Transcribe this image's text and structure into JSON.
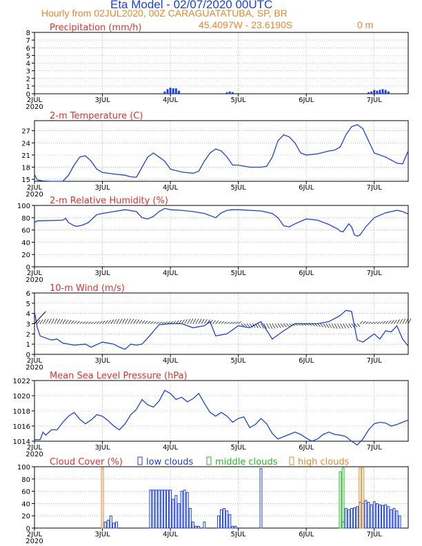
{
  "header": {
    "title": "Eta Model - 02/07/2020 00UTC",
    "subtitle": "Hourly from 02JUL2020, 00Z  CARAGUATATUBA, SP, BR",
    "coords": "45.4097W - 23.6190S",
    "elevation": "0  m"
  },
  "colors": {
    "line": "#1c40e0",
    "label": "#e03030",
    "orange": "#e8862a",
    "green": "#22bb22",
    "wind": "#000000"
  },
  "x_axis": {
    "range_hours": [
      0,
      132
    ],
    "tick_hours": [
      0,
      24,
      48,
      72,
      96,
      120
    ],
    "tick_labels": [
      "2JUL",
      "3JUL",
      "4JUL",
      "5JUL",
      "6JUL",
      "7JUL"
    ],
    "year_label": "2020"
  },
  "chart_data": [
    {
      "type": "bar",
      "title": "Precipitation (mm/h)",
      "ylim": [
        0,
        8
      ],
      "yticks": [
        0,
        1,
        2,
        3,
        4,
        5,
        6,
        7,
        8
      ],
      "series": [
        {
          "name": "precip",
          "x": [
            46,
            47,
            48,
            49,
            50,
            51,
            68,
            69,
            70,
            118,
            119,
            120,
            121,
            122,
            123,
            124,
            125
          ],
          "values": [
            0.3,
            0.6,
            0.8,
            0.7,
            0.7,
            0.4,
            0.2,
            0.3,
            0.2,
            0.2,
            0.3,
            0.5,
            0.4,
            0.5,
            0.6,
            0.5,
            0.3
          ]
        }
      ]
    },
    {
      "type": "line",
      "title": "2-m Temperature (C)",
      "ylim": [
        14.5,
        29.5
      ],
      "yticks": [
        15,
        18,
        21,
        24,
        27
      ],
      "series": [
        {
          "name": "temperature",
          "x": [
            0,
            1,
            3,
            6,
            10,
            12,
            14,
            16,
            18,
            20,
            22,
            24,
            28,
            32,
            34,
            36,
            38,
            40,
            42,
            44,
            46,
            48,
            52,
            56,
            58,
            60,
            62,
            64,
            66,
            68,
            70,
            72,
            76,
            80,
            82,
            84,
            86,
            88,
            90,
            92,
            94,
            96,
            100,
            104,
            106,
            108,
            110,
            112,
            114,
            116,
            118,
            120,
            124,
            128,
            130,
            132
          ],
          "values": [
            16.2,
            14.8,
            14.6,
            14.5,
            14.5,
            16,
            18.5,
            20.5,
            20.8,
            19.5,
            17.5,
            16.7,
            16.3,
            16,
            15.6,
            15.5,
            18,
            20.5,
            21.5,
            20.5,
            19.5,
            17.5,
            16.8,
            16.5,
            17,
            19.5,
            21.5,
            22.5,
            22,
            20.5,
            18.5,
            18.5,
            18,
            18,
            18.2,
            20.5,
            24.5,
            26,
            25.5,
            24,
            21.5,
            21,
            21.3,
            22,
            22.2,
            23,
            26,
            28,
            28.5,
            27.5,
            24.5,
            21.5,
            20.5,
            19,
            18.8,
            22
          ]
        }
      ]
    },
    {
      "type": "line",
      "title": "2-m Relative Humidity (%)",
      "ylim": [
        0,
        100
      ],
      "yticks": [
        0,
        20,
        40,
        60,
        80,
        100
      ],
      "series": [
        {
          "name": "humidity",
          "x": [
            0,
            1,
            2,
            10,
            11,
            12,
            14,
            15,
            17,
            19,
            22,
            24,
            28,
            32,
            36,
            38,
            40,
            42,
            44,
            46,
            48,
            52,
            56,
            60,
            64,
            66,
            68,
            70,
            72,
            80,
            84,
            86,
            88,
            90,
            92,
            96,
            100,
            104,
            106,
            107,
            108,
            109,
            111,
            112,
            113,
            114,
            115,
            117,
            120,
            124,
            128,
            130,
            132
          ],
          "values": [
            72,
            75,
            75,
            76,
            79,
            72,
            67,
            66,
            68,
            72,
            85,
            87,
            90,
            93,
            90,
            80,
            78,
            82,
            90,
            95,
            93,
            92,
            90,
            87,
            80,
            88,
            92,
            93,
            93,
            91,
            87,
            80,
            67,
            65,
            70,
            78,
            76,
            69,
            64,
            62,
            58,
            57,
            70,
            65,
            52,
            50,
            52,
            65,
            80,
            88,
            92,
            90,
            86
          ]
        }
      ]
    },
    {
      "type": "line",
      "title": "10-m Wind (m/s)",
      "ylim": [
        0,
        6
      ],
      "yticks": [
        0,
        1,
        2,
        3,
        4,
        5,
        6
      ],
      "series": [
        {
          "name": "wind_speed",
          "x": [
            0,
            1,
            2,
            4,
            6,
            8,
            10,
            14,
            18,
            20,
            24,
            28,
            30,
            32,
            34,
            36,
            38,
            40,
            44,
            48,
            52,
            56,
            60,
            62,
            64,
            68,
            72,
            76,
            80,
            84,
            88,
            92,
            96,
            100,
            104,
            108,
            110,
            112,
            113,
            114,
            116,
            118,
            120,
            122,
            124,
            126,
            128,
            130,
            132
          ],
          "values": [
            4.2,
            2.6,
            1.8,
            1.6,
            1.4,
            1.5,
            1.1,
            0.9,
            1.0,
            0.7,
            1.2,
            1.0,
            0.7,
            0.5,
            1.0,
            0.9,
            1.0,
            1.6,
            2.9,
            3.0,
            3.0,
            2.6,
            2.8,
            3.2,
            1.8,
            2.0,
            2.8,
            2.6,
            3.2,
            1.5,
            2.3,
            3.0,
            3.0,
            3.0,
            3.2,
            3.8,
            4.3,
            4.2,
            2.8,
            1.4,
            1.2,
            1.6,
            2.0,
            1.5,
            2.3,
            2.2,
            2.8,
            1.5,
            0.8
          ]
        },
        {
          "name": "wind_barbs_note",
          "values": []
        }
      ]
    },
    {
      "type": "line",
      "title": "Mean Sea Level Pressure (hPa)",
      "ylim": [
        1014,
        1022
      ],
      "yticks": [
        1014,
        1016,
        1018,
        1020,
        1022
      ],
      "series": [
        {
          "name": "pressure",
          "x": [
            0,
            2,
            3,
            4,
            6,
            8,
            10,
            12,
            14,
            16,
            18,
            20,
            22,
            24,
            26,
            28,
            30,
            32,
            34,
            36,
            38,
            40,
            42,
            44,
            46,
            48,
            50,
            52,
            54,
            56,
            58,
            60,
            62,
            64,
            66,
            68,
            70,
            72,
            74,
            76,
            78,
            80,
            82,
            84,
            86,
            88,
            90,
            92,
            94,
            96,
            98,
            100,
            102,
            104,
            106,
            108,
            110,
            112,
            114,
            116,
            118,
            120,
            122,
            124,
            126,
            128,
            130,
            132
          ],
          "values": [
            1014.2,
            1014.2,
            1015.2,
            1014.8,
            1015.5,
            1015.5,
            1016.5,
            1017.3,
            1017.8,
            1016.9,
            1016.3,
            1016.8,
            1017.5,
            1017.3,
            1016.7,
            1016.0,
            1015.5,
            1016.3,
            1017.5,
            1018.2,
            1019.5,
            1018.8,
            1018.5,
            1019.3,
            1020.7,
            1020.3,
            1019.5,
            1019.8,
            1019.2,
            1019.6,
            1020.3,
            1019.0,
            1017.8,
            1017.3,
            1017.8,
            1017.3,
            1016.5,
            1017.0,
            1017.2,
            1015.8,
            1016.2,
            1017.0,
            1016.3,
            1015.0,
            1014.3,
            1014.6,
            1014.9,
            1015.2,
            1014.9,
            1014.4,
            1014.0,
            1014.3,
            1014.9,
            1015.2,
            1014.9,
            1014.8,
            1014.6,
            1014.0,
            1013.5,
            1014.3,
            1015.5,
            1016.3,
            1016.5,
            1016.4,
            1016.0,
            1016.2,
            1016.5,
            1016.8
          ]
        }
      ]
    },
    {
      "type": "bar",
      "title": "Cloud Cover (%)",
      "ylim": [
        0,
        100
      ],
      "yticks": [
        0,
        20,
        40,
        60,
        80,
        100
      ],
      "legend": [
        "low clouds",
        "middle clouds",
        "high clouds"
      ],
      "series": [
        {
          "name": "low clouds",
          "x": [
            25,
            26,
            27,
            28,
            29,
            41,
            42,
            43,
            44,
            45,
            46,
            47,
            48,
            49,
            50,
            51,
            52,
            53,
            54,
            55,
            56,
            57,
            58,
            60,
            65,
            66,
            67,
            68,
            69,
            70,
            71,
            80,
            109,
            110,
            111,
            112,
            113,
            114,
            115,
            116,
            117,
            118,
            119,
            120,
            121,
            122,
            123,
            124,
            125,
            126,
            127,
            128,
            129
          ],
          "values": [
            10,
            13,
            20,
            8,
            10,
            62,
            62,
            62,
            62,
            62,
            62,
            62,
            62,
            47,
            53,
            40,
            60,
            62,
            58,
            32,
            10,
            3,
            3,
            10,
            20,
            30,
            32,
            28,
            22,
            3,
            3,
            97,
            10,
            32,
            30,
            32,
            33,
            35,
            42,
            40,
            45,
            42,
            38,
            43,
            40,
            38,
            37,
            38,
            35,
            30,
            32,
            28,
            20
          ]
        },
        {
          "name": "middle clouds",
          "x": [
            108,
            109
          ],
          "values": [
            92,
            98
          ]
        },
        {
          "name": "high clouds",
          "x": [
            24,
            115,
            116
          ],
          "values": [
            98,
            98,
            98
          ]
        }
      ]
    }
  ]
}
